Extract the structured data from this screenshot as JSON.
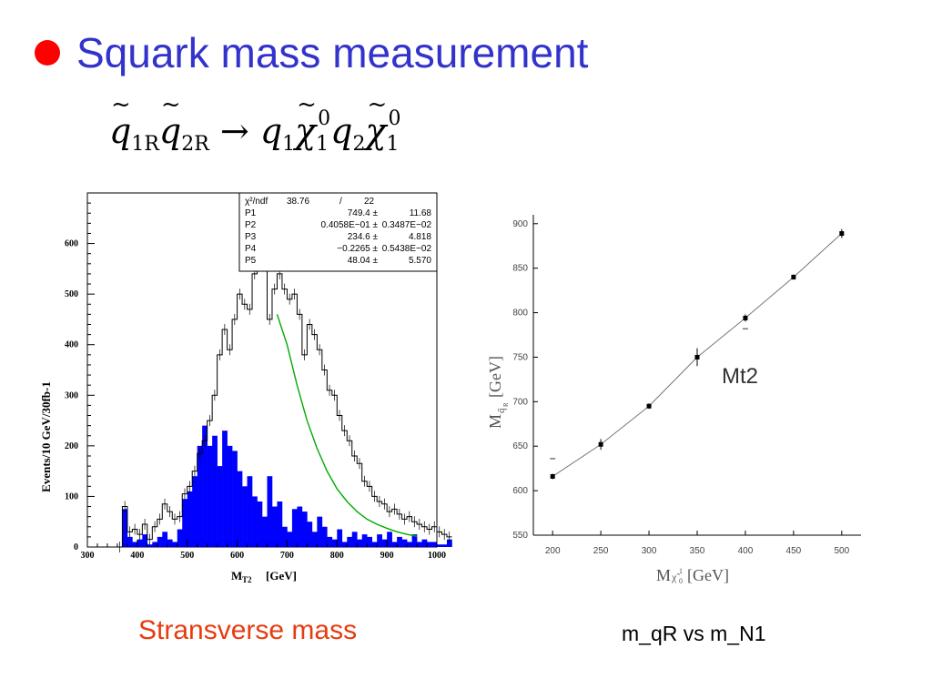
{
  "slide": {
    "title": "Squark mass measurement",
    "bullet_color": "#ff0000",
    "title_color": "#3333cc",
    "equation": {
      "lhs_a_sub": "1R",
      "lhs_b_sub": "2R",
      "arrow": "→",
      "rhs_q1_sub": "1",
      "rhs_chi_sub": "1",
      "rhs_chi_sup": "0",
      "rhs_q2_sub": "2",
      "rhs_chi2_sub": "1",
      "rhs_chi2_sup": "0"
    },
    "left_caption": "Stransverse mass",
    "right_caption": "m_qR  vs m_N1"
  },
  "chart_data": [
    {
      "type": "bar",
      "title": "",
      "xlabel": "M_T2  [GeV]",
      "xlabel_main": "M",
      "xlabel_sub": "T2",
      "xlabel_unit": "[GeV]",
      "ylabel": "Events/10 GeV/30fb-1",
      "xlim": [
        300,
        1000
      ],
      "ylim": [
        0,
        700
      ],
      "x_ticks": [
        "300",
        "400",
        "500",
        "600",
        "700",
        "800",
        "900",
        "1000"
      ],
      "y_ticks": [
        "0",
        "100",
        "200",
        "300",
        "400",
        "500",
        "600"
      ],
      "bin_width": 10,
      "bin_start": 360,
      "series": [
        {
          "style": "outline-step",
          "color": "#000000",
          "values": [
            0,
            80,
            30,
            35,
            25,
            45,
            15,
            40,
            55,
            85,
            70,
            55,
            60,
            105,
            120,
            150,
            185,
            210,
            250,
            300,
            380,
            430,
            390,
            450,
            500,
            480,
            470,
            540,
            620,
            560,
            450,
            510,
            540,
            510,
            490,
            500,
            460,
            380,
            440,
            420,
            390,
            350,
            310,
            300,
            260,
            230,
            210,
            180,
            165,
            130,
            120,
            100,
            90,
            85,
            70,
            75,
            65,
            55,
            60,
            50,
            45,
            40,
            35,
            40,
            30,
            25,
            20
          ]
        },
        {
          "style": "filled",
          "color": "#0000ff",
          "values": [
            0,
            75,
            20,
            10,
            15,
            25,
            5,
            10,
            20,
            30,
            15,
            10,
            35,
            95,
            110,
            140,
            200,
            240,
            200,
            220,
            160,
            230,
            200,
            190,
            150,
            120,
            140,
            100,
            90,
            60,
            140,
            80,
            90,
            40,
            30,
            75,
            80,
            70,
            50,
            30,
            60,
            40,
            20,
            15,
            35,
            10,
            20,
            30,
            15,
            25,
            20,
            10,
            25,
            15,
            30,
            10,
            20,
            15,
            10,
            25,
            10,
            15,
            10,
            10,
            5,
            5,
            15
          ]
        },
        {
          "style": "fit-curve",
          "color": "#00aa00",
          "x": [
            680,
            700,
            720,
            740,
            760,
            780,
            800,
            820,
            840,
            860,
            880,
            900,
            920,
            940,
            960
          ],
          "values": [
            460,
            400,
            320,
            250,
            195,
            150,
            115,
            90,
            70,
            55,
            45,
            37,
            30,
            25,
            21
          ]
        }
      ],
      "stats_box": {
        "rows": [
          {
            "label": "χ²/ndf",
            "value": "38.76",
            "sep": "/",
            "err": "22"
          },
          {
            "label": "P1",
            "value": "749.4 ±",
            "sep": "",
            "err": "11.68"
          },
          {
            "label": "P2",
            "value": "0.4058E−01 ±",
            "sep": "",
            "err": "0.3487E−02"
          },
          {
            "label": "P3",
            "value": "234.6 ±",
            "sep": "",
            "err": "4.818"
          },
          {
            "label": "P4",
            "value": "−0.2265 ±",
            "sep": "",
            "err": "0.5438E−02"
          },
          {
            "label": "P5",
            "value": "48.04 ±",
            "sep": "",
            "err": "5.570"
          }
        ]
      }
    },
    {
      "type": "line",
      "title": "",
      "xlabel": "M χ̃⁰₁ [GeV]",
      "xlabel_main": "M",
      "xlabel_sym": "χ̃",
      "xlabel_sup": "1",
      "xlabel_sub": "0",
      "xlabel_unit": "[GeV]",
      "ylabel": "M q̃_R [GeV]",
      "ylabel_main": "M",
      "ylabel_sym": "q̃",
      "ylabel_sub": "R",
      "ylabel_unit": "[GeV]",
      "xlim": [
        180,
        520
      ],
      "ylim": [
        550,
        910
      ],
      "x_ticks": [
        "200",
        "250",
        "300",
        "350",
        "400",
        "450",
        "500"
      ],
      "y_ticks": [
        "550",
        "600",
        "650",
        "700",
        "750",
        "800",
        "850",
        "900"
      ],
      "annotation": "Mt2",
      "series": [
        {
          "name": "",
          "color": "#000000",
          "x": [
            200,
            250,
            300,
            350,
            400,
            450,
            500
          ],
          "y": [
            616,
            652,
            695,
            750,
            794,
            840,
            889
          ],
          "err": [
            3,
            6,
            3,
            10,
            4,
            3,
            5
          ]
        }
      ],
      "extra_markers": [
        {
          "x": 200,
          "y": 636
        },
        {
          "x": 400,
          "y": 782
        }
      ]
    }
  ]
}
